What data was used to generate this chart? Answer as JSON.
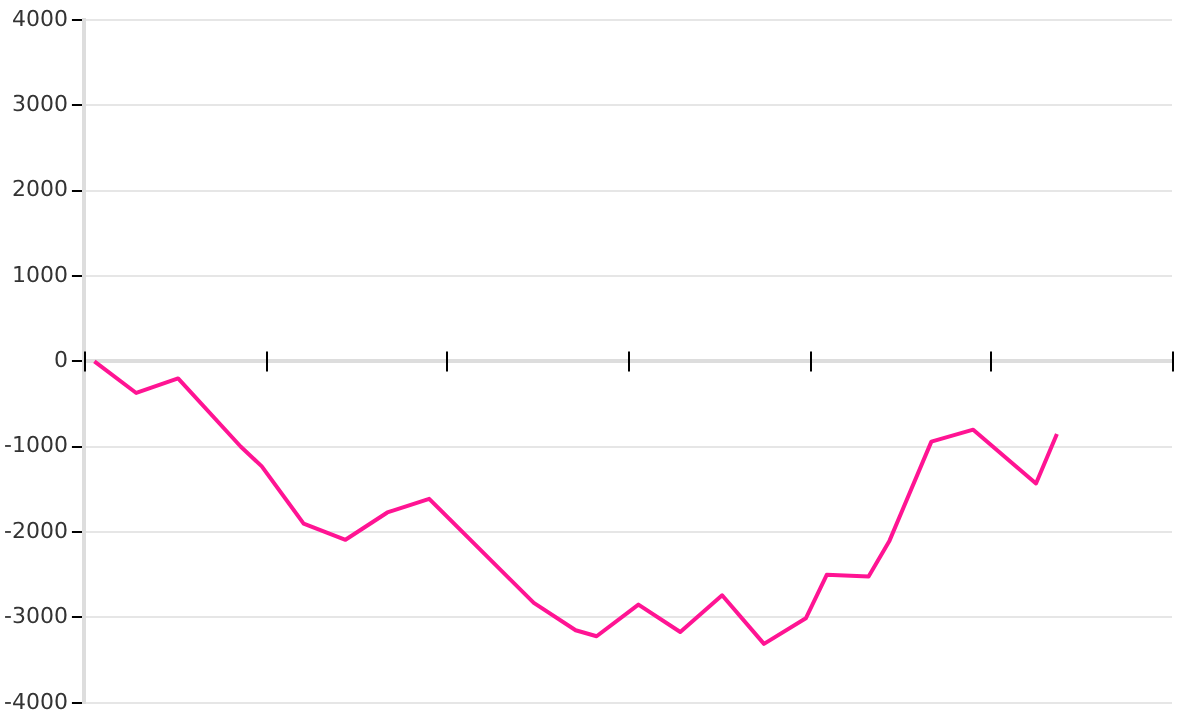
{
  "chart_data": {
    "type": "line",
    "categories": [
      null,
      null,
      null,
      null,
      null,
      null,
      null,
      null,
      null,
      null,
      null,
      null,
      null,
      null,
      null,
      null,
      null,
      null,
      null,
      null,
      null,
      null,
      null,
      null,
      null,
      null,
      null,
      null,
      null,
      null,
      null,
      null,
      null,
      null,
      null,
      null,
      null,
      null,
      null,
      null,
      null,
      null,
      null,
      null,
      null,
      null,
      null,
      null,
      null,
      null,
      null,
      null
    ],
    "series": [
      {
        "color": "#ff1493",
        "values": [
          0,
          null,
          -370,
          null,
          -200,
          null,
          null,
          -1000,
          -1230,
          null,
          -1900,
          null,
          -2090,
          null,
          -1770,
          null,
          -1610,
          null,
          null,
          null,
          null,
          -2830,
          null,
          -3150,
          -3220,
          null,
          -2850,
          null,
          -3170,
          null,
          -2740,
          null,
          -3310,
          null,
          -3010,
          -2500,
          null,
          -2520,
          -2100,
          null,
          -940,
          null,
          -800,
          null,
          null,
          -1430,
          -850,
          null,
          null,
          null,
          null,
          null
        ]
      }
    ],
    "ylim": [
      -4000,
      4000
    ],
    "yticks": [
      -4000,
      -3000,
      -2000,
      -1000,
      0,
      1000,
      2000,
      3000,
      4000
    ],
    "tick_labels": "y",
    "grid": "y",
    "legend": false,
    "marker": "none",
    "line_style": "solid"
  }
}
